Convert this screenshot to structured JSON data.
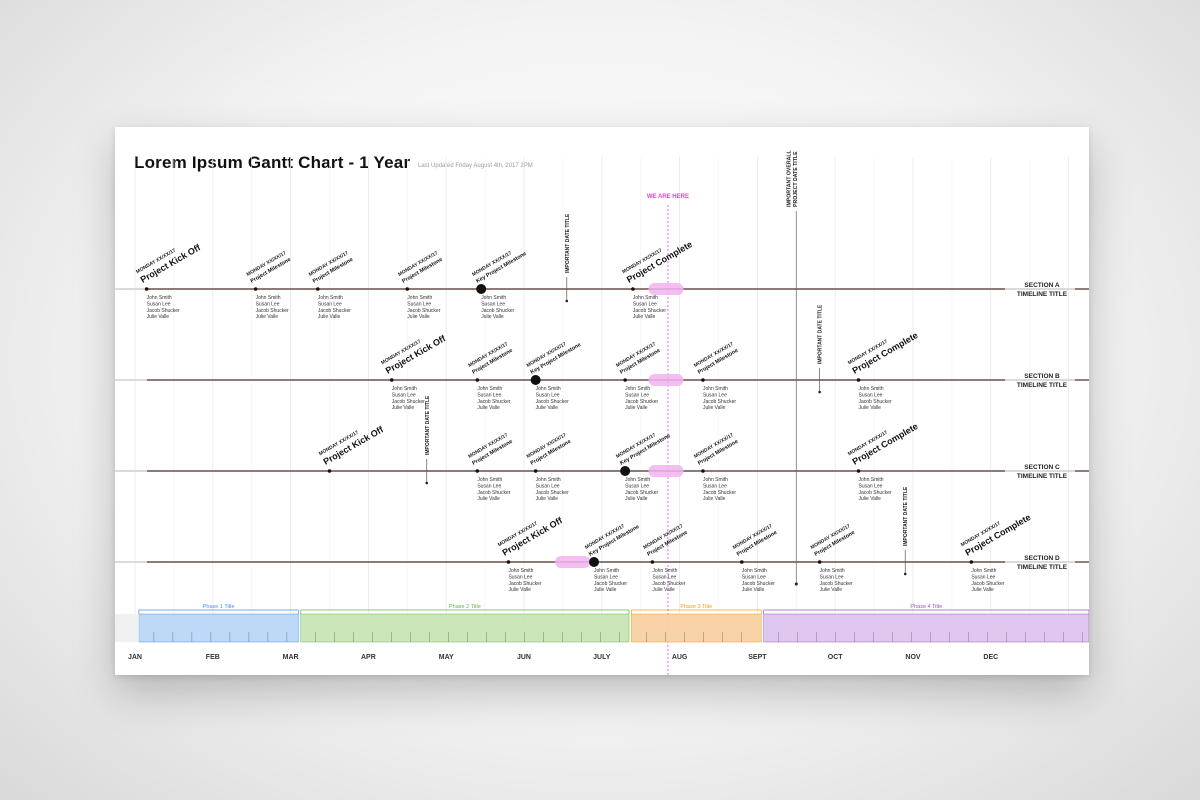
{
  "header": {
    "title": "Lorem Ipsum Gantt Chart - 1 Year",
    "updated": "Last Updated Friday August 4th, 2017 2PM"
  },
  "colors": {
    "timeline": "#5a3b36",
    "today": "#e83ee6",
    "today_fill": "#f2b3ee",
    "grid": "#e8e8f0"
  },
  "today_label": "WE ARE HERE",
  "important_overall": [
    "IMPORTANT OVERALL",
    "PROJECT DATE TITLE"
  ],
  "months": [
    "JAN",
    "FEB",
    "MAR",
    "APR",
    "MAY",
    "JUN",
    "JULY",
    "AUG",
    "SEPT",
    "OCT",
    "NOV",
    "DEC"
  ],
  "phases": [
    {
      "label": "Phase 1 Title",
      "color": "#4a90e2",
      "fill": "#b9d7f8",
      "start_month": 0.05,
      "end_month": 2.1
    },
    {
      "label": "Phase 2 Title",
      "color": "#6ab04c",
      "fill": "#c9e6b6",
      "start_month": 2.13,
      "end_month": 6.35
    },
    {
      "label": "Phase 3 Title",
      "color": "#f39c12",
      "fill": "#f8d1a3",
      "start_month": 6.38,
      "end_month": 8.05
    },
    {
      "label": "Phase 4 Title",
      "color": "#9b59b6",
      "fill": "#ddc4ef",
      "start_month": 8.08,
      "end_month": 12.3
    }
  ],
  "today_month": 6.85,
  "sections": [
    {
      "name": "SECTION A",
      "subtitle": "TIMELINE TITLE",
      "line_start_month": -0.3,
      "today_pill": [
        6.6,
        7.05
      ],
      "important": {
        "month": 5.55,
        "label": "IMPORTANT DATE TITLE"
      },
      "milestones": [
        {
          "month": 0.15,
          "date": "MONDAY XX/XX/17",
          "label": "Project Kick Off",
          "big": true,
          "dot": "small",
          "people": [
            "John Smith",
            "Susan Lee",
            "Jacob Shucker",
            "Julie Valle"
          ]
        },
        {
          "month": 1.55,
          "date": "MONDAY XX/XX/17",
          "label": "Project Milestone",
          "big": false,
          "dot": "small",
          "people": [
            "John Smith",
            "Susan Lee",
            "Jacob Shucker",
            "Julie Valle"
          ]
        },
        {
          "month": 2.35,
          "date": "MONDAY XX/XX/17",
          "label": "Project Milestone",
          "big": false,
          "dot": "small",
          "people": [
            "John Smith",
            "Susan Lee",
            "Jacob Shucker",
            "Julie Valle"
          ]
        },
        {
          "month": 3.5,
          "date": "MONDAY XX/XX/17",
          "label": "Project Milestone",
          "big": false,
          "dot": "small",
          "people": [
            "John Smith",
            "Susan Lee",
            "Jacob Shucker",
            "Julie Valle"
          ]
        },
        {
          "month": 4.45,
          "date": "MONDAY XX/XX/17",
          "label": "Key Project Milestone",
          "big": false,
          "dot": "large",
          "people": [
            "John Smith",
            "Susan Lee",
            "Jacob Shucker",
            "Julie Valle"
          ]
        },
        {
          "month": 6.4,
          "date": "MONDAY XX/XX/17",
          "label": "Project Complete",
          "big": true,
          "dot": "small",
          "people": [
            "John Smith",
            "Susan Lee",
            "Jacob Shucker",
            "Julie Valle"
          ]
        }
      ]
    },
    {
      "name": "SECTION B",
      "subtitle": "TIMELINE TITLE",
      "line_start_month": -0.3,
      "today_pill": [
        6.6,
        7.05
      ],
      "important": {
        "month": 8.8,
        "label": "IMPORTANT DATE TITLE"
      },
      "milestones": [
        {
          "month": 3.3,
          "date": "MONDAY XX/XX/17",
          "label": "Project Kick Off",
          "big": true,
          "dot": "small",
          "people": [
            "John Smith",
            "Susan Lee",
            "Jacob Shucker",
            "Julie Valle"
          ]
        },
        {
          "month": 4.4,
          "date": "MONDAY XX/XX/17",
          "label": "Project Milestone",
          "big": false,
          "dot": "small",
          "people": [
            "John Smith",
            "Susan Lee",
            "Jacob Shucker",
            "Julie Valle"
          ]
        },
        {
          "month": 5.15,
          "date": "MONDAY XX/XX/17",
          "label": "Key Project Milestone",
          "big": false,
          "dot": "large",
          "people": [
            "John Smith",
            "Susan Lee",
            "Jacob Shucker",
            "Julie Valle"
          ]
        },
        {
          "month": 6.3,
          "date": "MONDAY XX/XX/17",
          "label": "Project Milestone",
          "big": false,
          "dot": "small",
          "people": [
            "John Smith",
            "Susan Lee",
            "Jacob Shucker",
            "Julie Valle"
          ]
        },
        {
          "month": 7.3,
          "date": "MONDAY XX/XX/17",
          "label": "Project Milestone",
          "big": false,
          "dot": "small",
          "people": [
            "John Smith",
            "Susan Lee",
            "Jacob Shucker",
            "Julie Valle"
          ]
        },
        {
          "month": 9.3,
          "date": "MONDAY XX/XX/17",
          "label": "Project Complete",
          "big": true,
          "dot": "small",
          "people": [
            "John Smith",
            "Susan Lee",
            "Jacob Shucker",
            "Julie Valle"
          ]
        }
      ]
    },
    {
      "name": "SECTION C",
      "subtitle": "TIMELINE TITLE",
      "line_start_month": -0.3,
      "today_pill": [
        6.6,
        7.05
      ],
      "important": {
        "month": 3.75,
        "label": "IMPORTANT DATE TITLE"
      },
      "milestones": [
        {
          "month": 2.5,
          "date": "MONDAY XX/XX/17",
          "label": "Project Kick Off",
          "big": true,
          "dot": "small",
          "people": []
        },
        {
          "month": 4.4,
          "date": "MONDAY XX/XX/17",
          "label": "Project Milestone",
          "big": false,
          "dot": "small",
          "people": [
            "John Smith",
            "Susan Lee",
            "Jacob Shucker",
            "Julie Valle"
          ]
        },
        {
          "month": 5.15,
          "date": "MONDAY XX/XX/17",
          "label": "Project Milestone",
          "big": false,
          "dot": "small",
          "people": [
            "John Smith",
            "Susan Lee",
            "Jacob Shucker",
            "Julie Valle"
          ]
        },
        {
          "month": 6.3,
          "date": "MONDAY XX/XX/17",
          "label": "Key Project Milestone",
          "big": false,
          "dot": "large",
          "people": [
            "John Smith",
            "Susan Lee",
            "Jacob Shucker",
            "Julie Valle"
          ]
        },
        {
          "month": 7.3,
          "date": "MONDAY XX/XX/17",
          "label": "Project Milestone",
          "big": false,
          "dot": "small",
          "people": [
            "John Smith",
            "Susan Lee",
            "Jacob Shucker",
            "Julie Valle"
          ]
        },
        {
          "month": 9.3,
          "date": "MONDAY XX/XX/17",
          "label": "Project Complete",
          "big": true,
          "dot": "small",
          "people": [
            "John Smith",
            "Susan Lee",
            "Jacob Shucker",
            "Julie Valle"
          ]
        }
      ]
    },
    {
      "name": "SECTION D",
      "subtitle": "TIMELINE TITLE",
      "line_start_month": -0.3,
      "today_pill": [
        5.4,
        5.85
      ],
      "important": {
        "month": 9.9,
        "label": "IMPORTANT DATE TITLE"
      },
      "milestones": [
        {
          "month": 4.8,
          "date": "MONDAY XX/XX/17",
          "label": "Project Kick Off",
          "big": true,
          "dot": "small",
          "people": [
            "John Smith",
            "Susan Lee",
            "Jacob Shucker",
            "Julie Valle"
          ]
        },
        {
          "month": 5.9,
          "date": "MONDAY XX/XX/17",
          "label": "Key Project Milestone",
          "big": false,
          "dot": "large",
          "people": [
            "John Smith",
            "Susan Lee",
            "Jacob Shucker",
            "Julie Valle"
          ]
        },
        {
          "month": 6.65,
          "date": "MONDAY XX/XX/17",
          "label": "Project Milestone",
          "big": false,
          "dot": "small",
          "people": [
            "John Smith",
            "Susan Lee",
            "Jacob Shucker",
            "Julie Valle"
          ]
        },
        {
          "month": 7.8,
          "date": "MONDAY XX/XX/17",
          "label": "Project Milestone",
          "big": false,
          "dot": "small",
          "people": [
            "John Smith",
            "Susan Lee",
            "Jacob Shucker",
            "Julie Valle"
          ]
        },
        {
          "month": 8.8,
          "date": "MONDAY XX/XX/17",
          "label": "Project Milestone",
          "big": false,
          "dot": "small",
          "people": [
            "John Smith",
            "Susan Lee",
            "Jacob Shucker",
            "Julie Valle"
          ]
        },
        {
          "month": 10.75,
          "date": "MONDAY XX/XX/17",
          "label": "Project Complete",
          "big": true,
          "dot": "small",
          "people": [
            "John Smith",
            "Susan Lee",
            "Jacob Shucker",
            "Julie Valle"
          ]
        }
      ]
    }
  ]
}
